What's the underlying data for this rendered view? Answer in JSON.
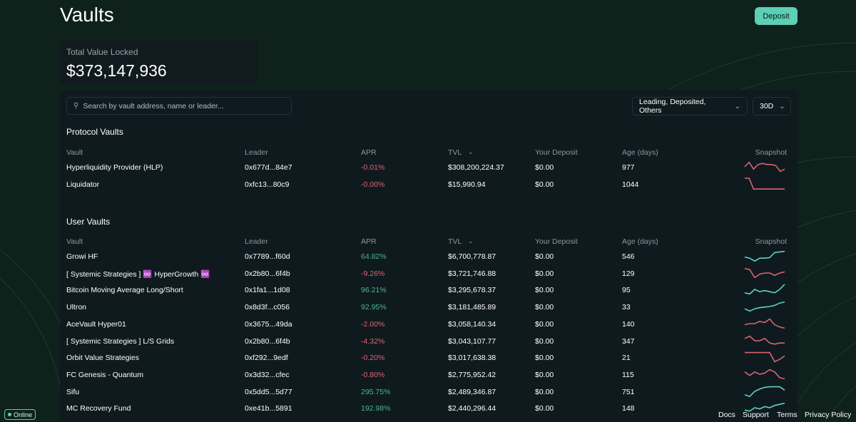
{
  "header": {
    "title": "Vaults",
    "deposit_label": "Deposit"
  },
  "tvl": {
    "label": "Total Value Locked",
    "value": "$373,147,936"
  },
  "search": {
    "placeholder": "Search by vault address, name or leader...",
    "icon": "search-icon"
  },
  "filters": {
    "type_value": "Leading, Deposited, Others",
    "period_value": "30D"
  },
  "columns": [
    "Vault",
    "Leader",
    "APR",
    "TVL",
    "Your Deposit",
    "Age (days)",
    "Snapshot"
  ],
  "colors": {
    "positive": "#4fb48f",
    "negative": "#e0646f",
    "accent": "#5ccfb6",
    "positive_spark": "#5fd3bd",
    "negative_spark": "#d9646f"
  },
  "protocol": {
    "title": "Protocol Vaults",
    "rows": [
      {
        "vault": "Hyperliquidity Provider (HLP)",
        "leader": "0x677d...84e7",
        "apr": "-0.01%",
        "tvl": "$308,200,224.37",
        "deposit": "$0.00",
        "age": "977",
        "trend": "neg",
        "spark": [
          0.5,
          0.9,
          0.3,
          0.7,
          0.8,
          0.7,
          0.7,
          0.6,
          0.1,
          0.3
        ]
      },
      {
        "vault": "Liquidator",
        "leader": "0xfc13...80c9",
        "apr": "-0.00%",
        "tvl": "$15,990.94",
        "deposit": "$0.00",
        "age": "1044",
        "trend": "neg",
        "spark": [
          1,
          1,
          0.05,
          0.05,
          0.05,
          0.05,
          0.05,
          0.05,
          0.05,
          0.05
        ]
      }
    ]
  },
  "user": {
    "title": "User Vaults",
    "rows": [
      {
        "vault": "Growi HF",
        "leader": "0x7789...f60d",
        "apr": "64.82%",
        "tvl": "$6,700,778.87",
        "deposit": "$0.00",
        "age": "546",
        "trend": "pos",
        "spark": [
          0.4,
          0.3,
          0.05,
          0.3,
          0.3,
          0.35,
          0.8,
          0.85,
          0.9
        ]
      },
      {
        "vault": "[ Systemic Strategies ] ♾️ HyperGrowth ♾️",
        "leader": "0x2b80...6f4b",
        "apr": "-9.26%",
        "tvl": "$3,721,746.88",
        "deposit": "$0.00",
        "age": "129",
        "trend": "neg",
        "spark": [
          0.9,
          0.8,
          0.1,
          0.4,
          0.5,
          0.5,
          0.3,
          0.5,
          0.6
        ]
      },
      {
        "vault": "Bitcoin Moving Average Long/Short",
        "leader": "0x1fa1...1d08",
        "apr": "96.21%",
        "tvl": "$3,295,678.37",
        "deposit": "$0.00",
        "age": "95",
        "trend": "pos",
        "spark": [
          0.2,
          0.1,
          0.5,
          0.3,
          0.4,
          0.3,
          0.2,
          0.5,
          0.95
        ]
      },
      {
        "vault": "Ultron",
        "leader": "0x8d3f...c056",
        "apr": "92.95%",
        "tvl": "$3,181,485.89",
        "deposit": "$0.00",
        "age": "33",
        "trend": "pos",
        "spark": [
          0.3,
          0.1,
          0.3,
          0.4,
          0.45,
          0.5,
          0.6,
          0.8,
          0.9
        ]
      },
      {
        "vault": "AceVault Hyper01",
        "leader": "0x3675...49da",
        "apr": "-2.00%",
        "tvl": "$3,058,140.34",
        "deposit": "$0.00",
        "age": "140",
        "trend": "neg",
        "spark": [
          0.4,
          0.5,
          0.5,
          0.7,
          0.6,
          0.9,
          0.4,
          0.2,
          0.1
        ]
      },
      {
        "vault": "[ Systemic Strategies ] L/S Grids",
        "leader": "0x2b80...6f4b",
        "apr": "-4.32%",
        "tvl": "$3,043,107.77",
        "deposit": "$0.00",
        "age": "347",
        "trend": "neg",
        "spark": [
          0.7,
          0.9,
          0.5,
          0.5,
          0.7,
          0.3,
          0.2,
          0.3,
          0.3
        ]
      },
      {
        "vault": "Orbit Value Strategies",
        "leader": "0xf292...9edf",
        "apr": "-0.20%",
        "tvl": "$3,017,638.38",
        "deposit": "$0.00",
        "age": "21",
        "trend": "neg",
        "spark": [
          0.9,
          0.9,
          0.9,
          0.9,
          0.9,
          0.9,
          0.1,
          0.3,
          0.6
        ]
      },
      {
        "vault": "FC Genesis - Quantum",
        "leader": "0x3d32...cfec",
        "apr": "-0.80%",
        "tvl": "$2,775,952.42",
        "deposit": "$0.00",
        "age": "115",
        "trend": "neg",
        "spark": [
          0.7,
          0.4,
          0.7,
          0.5,
          0.6,
          0.9,
          0.7,
          0.2,
          0.1
        ]
      },
      {
        "vault": "Sifu",
        "leader": "0x5dd5...5d77",
        "apr": "295.75%",
        "tvl": "$2,489,346.87",
        "deposit": "$0.00",
        "age": "751",
        "trend": "pos",
        "spark": [
          0.2,
          0.05,
          0.5,
          0.7,
          0.85,
          0.9,
          0.9,
          0.9,
          0.6
        ]
      },
      {
        "vault": "MC Recovery Fund",
        "leader": "0xe41b...5891",
        "apr": "192.98%",
        "tvl": "$2,440,296.44",
        "deposit": "$0.00",
        "age": "148",
        "trend": "pos",
        "spark": [
          0.3,
          0.2,
          0.5,
          0.4,
          0.6,
          0.5,
          0.7,
          0.8,
          0.9
        ]
      }
    ]
  },
  "footer": {
    "status": "Online",
    "links": [
      "Docs",
      "Support",
      "Terms",
      "Privacy Policy"
    ]
  }
}
